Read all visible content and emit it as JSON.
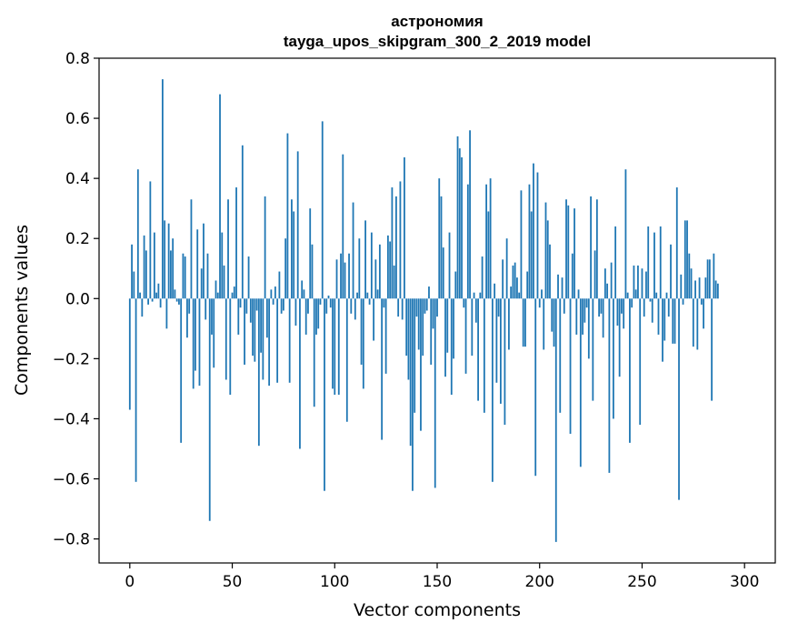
{
  "chart_data": {
    "type": "bar",
    "title": "астрономия",
    "subtitle": "tayga_upos_skipgram_300_2_2019 model",
    "xlabel": "Vector components",
    "ylabel": "Components values",
    "xlim": [
      -15,
      315
    ],
    "ylim": [
      -0.88,
      0.8
    ],
    "x_ticks": [
      0,
      50,
      100,
      150,
      200,
      250,
      300
    ],
    "x_tick_labels": [
      "0",
      "50",
      "100",
      "150",
      "200",
      "250",
      "300"
    ],
    "y_ticks": [
      -0.8,
      -0.6,
      -0.4,
      -0.2,
      0.0,
      0.2,
      0.4,
      0.6,
      0.8
    ],
    "y_tick_labels": [
      "−0.8",
      "−0.6",
      "−0.4",
      "−0.2",
      "0.0",
      "0.2",
      "0.4",
      "0.6",
      "0.8"
    ],
    "bar_color": "#1f77b4",
    "values": [
      -0.37,
      0.18,
      0.09,
      -0.61,
      0.43,
      0.02,
      -0.06,
      0.21,
      0.16,
      -0.02,
      0.39,
      -0.01,
      0.22,
      0.02,
      0.05,
      -0.03,
      0.73,
      0.26,
      -0.1,
      0.25,
      0.16,
      0.2,
      0.03,
      -0.01,
      -0.02,
      -0.48,
      0.15,
      0.14,
      -0.13,
      -0.05,
      0.33,
      -0.3,
      -0.24,
      0.23,
      -0.29,
      0.1,
      0.25,
      -0.07,
      0.15,
      -0.74,
      -0.12,
      -0.23,
      0.06,
      0.02,
      0.68,
      0.22,
      0.11,
      -0.27,
      0.33,
      -0.32,
      0.02,
      0.04,
      0.37,
      -0.12,
      -0.03,
      0.51,
      -0.22,
      -0.05,
      0.14,
      -0.08,
      -0.19,
      -0.21,
      -0.04,
      -0.49,
      -0.18,
      -0.27,
      0.34,
      -0.13,
      -0.29,
      0.03,
      -0.02,
      0.04,
      -0.28,
      0.09,
      -0.05,
      -0.04,
      0.2,
      0.55,
      -0.28,
      0.33,
      0.29,
      -0.09,
      0.49,
      -0.5,
      0.06,
      0.03,
      -0.12,
      -0.05,
      0.3,
      0.18,
      -0.36,
      -0.12,
      -0.1,
      -0.02,
      0.59,
      -0.64,
      -0.05,
      0.01,
      -0.03,
      -0.3,
      -0.32,
      0.13,
      -0.32,
      0.15,
      0.48,
      0.12,
      -0.41,
      0.15,
      -0.05,
      0.32,
      -0.07,
      0.02,
      0.2,
      -0.22,
      -0.3,
      0.26,
      0.02,
      -0.02,
      0.22,
      -0.14,
      0.13,
      0.03,
      0.18,
      -0.47,
      -0.03,
      -0.25,
      0.21,
      0.19,
      0.37,
      0.11,
      0.34,
      -0.06,
      0.39,
      -0.07,
      0.47,
      -0.19,
      -0.27,
      -0.49,
      -0.64,
      -0.38,
      -0.06,
      -0.17,
      -0.44,
      -0.19,
      -0.05,
      -0.04,
      0.04,
      -0.22,
      -0.1,
      -0.63,
      -0.06,
      0.4,
      0.34,
      0.17,
      -0.26,
      -0.18,
      0.22,
      -0.32,
      -0.2,
      0.09,
      0.54,
      0.5,
      0.47,
      -0.03,
      -0.25,
      0.38,
      0.56,
      -0.19,
      0.02,
      -0.08,
      -0.34,
      0.02,
      0.14,
      -0.38,
      0.38,
      0.29,
      0.4,
      -0.61,
      0.05,
      -0.28,
      -0.06,
      -0.35,
      0.13,
      -0.42,
      0.2,
      -0.17,
      0.04,
      0.11,
      0.12,
      0.07,
      0.02,
      0.36,
      -0.16,
      -0.16,
      0.09,
      0.38,
      0.29,
      0.45,
      -0.59,
      0.42,
      -0.03,
      0.03,
      -0.17,
      0.32,
      0.26,
      0.18,
      -0.11,
      -0.16,
      -0.81,
      0.08,
      -0.38,
      0.07,
      -0.05,
      0.33,
      0.31,
      -0.45,
      0.15,
      0.3,
      -0.12,
      0.03,
      -0.56,
      -0.12,
      -0.08,
      -0.03,
      -0.2,
      0.34,
      -0.34,
      0.16,
      0.33,
      -0.06,
      -0.05,
      -0.13,
      0.1,
      0.05,
      -0.58,
      0.12,
      -0.4,
      0.24,
      -0.09,
      -0.26,
      -0.05,
      -0.1,
      0.43,
      0.02,
      -0.48,
      -0.03,
      0.11,
      0.03,
      0.11,
      -0.42,
      0.1,
      -0.06,
      0.09,
      0.24,
      -0.01,
      -0.08,
      0.22,
      0.02,
      -0.12,
      0.24,
      -0.21,
      -0.14,
      0.02,
      -0.06,
      0.18,
      -0.15,
      -0.15,
      0.37,
      -0.67,
      0.08,
      -0.02,
      0.26,
      0.26,
      0.15,
      0.1,
      -0.16,
      0.06,
      -0.17,
      0.07,
      -0.02,
      -0.1,
      0.07,
      0.13,
      0.13,
      -0.34,
      0.15,
      0.06,
      0.05
    ]
  }
}
